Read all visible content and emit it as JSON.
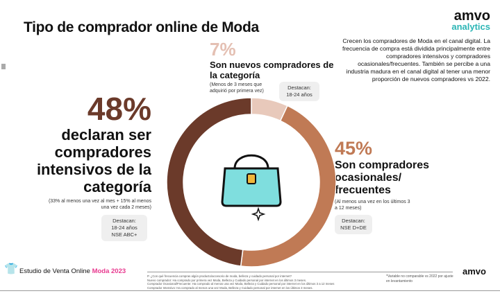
{
  "title": "Tipo de comprador online de Moda",
  "logo": {
    "brand": "amvo",
    "sub": "analytics"
  },
  "summary": "Crecen los compradores de Moda en el canal digital. La frecuencia de compra está dividida principalmente entre compradores intensivos y compradores ocasionales/frecuentes. También se percibe a una industria madura en el canal digital al tener una menor proporción de nuevos compradores vs 2022.",
  "segments": [
    {
      "pct": "7%",
      "label": "Son nuevos compradores de la categoría",
      "note": "(Menos de 3 meses que adquirió por primera vez)",
      "destacan": [
        "Destacan:",
        "18-24 años"
      ]
    },
    {
      "pct": "45%",
      "label": "Son compradores ocasionales/ frecuentes",
      "note": "(Al menos una vez en los últimos 3 a 12 meses)",
      "destacan": [
        "Destacan:",
        "NSE D+DE"
      ]
    },
    {
      "pct": "48%",
      "label": "declaran ser compradores intensivos de la categoría",
      "note": "(33% al menos una vez al mes + 15% al menos una vez cada 2 meses)",
      "destacan": [
        "Destacan:",
        "18-24 años",
        "NSE ABC+"
      ]
    }
  ],
  "chart_data": {
    "type": "pie",
    "categories": [
      "Nuevos",
      "Ocasionales/frecuentes",
      "Intensivos"
    ],
    "values": [
      7,
      45,
      48
    ],
    "colors": [
      "#e8c9bb",
      "#c07a55",
      "#6b3a2a"
    ]
  },
  "footer": {
    "study": "Estudio de Venta Online",
    "highlight": "Moda 2023",
    "notes": [
      "P. ¿Con qué frecuencia compras algún producto/accesorio de moda, belleza y cuidado personal por internet?",
      "Nuevo comprador: Ha comprado por primera vez Moda, Belleza y Cuidado personal por internet en los últimos 3 meses.",
      "Comprador Ocasional/Frecuente: Ha comprado al menos una vez Moda, Belleza y Cuidado personal por internet en los últimos 3 a 12 meses",
      "Comprador Intensivo: Ha comprado al menos una vez Moda, Belleza y Cuidado personal por internet en los últimos 3 meses."
    ],
    "variable_note": "*Variable no comparable vs 2022 por ajuste en levantamiento",
    "brand": "amvo"
  }
}
